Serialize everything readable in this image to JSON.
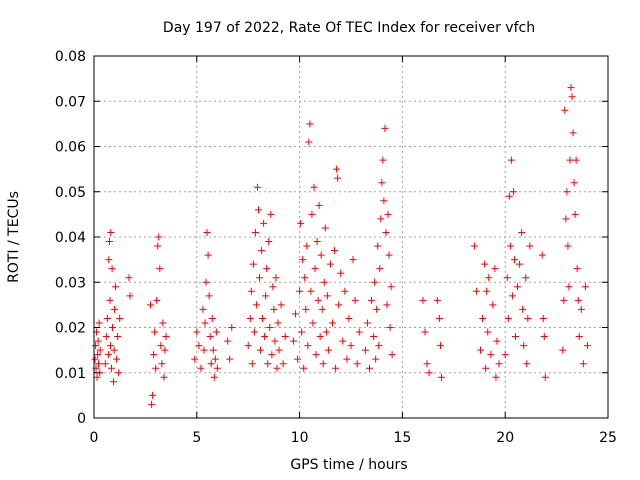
{
  "chart_data": {
    "type": "scatter",
    "title": "Day 197 of 2022, Rate Of TEC Index for receiver vfch",
    "xlabel": "GPS time / hours",
    "ylabel": "ROTI / TECUs",
    "xlim": [
      0,
      25
    ],
    "ylim": [
      0,
      0.08
    ],
    "x_ticks": [
      0,
      5,
      10,
      15,
      20,
      25
    ],
    "x_tick_labels": [
      "0",
      "5",
      "10",
      "15",
      "20",
      "25"
    ],
    "y_ticks": [
      0,
      0.01,
      0.02,
      0.03,
      0.04,
      0.05,
      0.06,
      0.07,
      0.08
    ],
    "y_tick_labels": [
      "0",
      "0.01",
      "0.02",
      "0.03",
      "0.04",
      "0.05",
      "0.06",
      "0.07",
      "0.08"
    ],
    "grid": true,
    "marker": "plus",
    "color": "#ff0000",
    "series": [
      {
        "name": "ROTI",
        "points": [
          [
            0.05,
            0.013
          ],
          [
            0.08,
            0.016
          ],
          [
            0.1,
            0.011
          ],
          [
            0.12,
            0.019
          ],
          [
            0.15,
            0.009
          ],
          [
            0.18,
            0.014
          ],
          [
            0.2,
            0.017
          ],
          [
            0.22,
            0.012
          ],
          [
            0.25,
            0.021
          ],
          [
            0.28,
            0.01
          ],
          [
            0.3,
            0.015
          ],
          [
            0.55,
            0.012
          ],
          [
            0.6,
            0.018
          ],
          [
            0.65,
            0.022
          ],
          [
            0.7,
            0.014
          ],
          [
            0.72,
            0.035
          ],
          [
            0.75,
            0.039
          ],
          [
            0.78,
            0.026
          ],
          [
            0.8,
            0.016
          ],
          [
            0.82,
            0.041
          ],
          [
            0.85,
            0.011
          ],
          [
            0.88,
            0.033
          ],
          [
            0.9,
            0.02
          ],
          [
            0.95,
            0.008
          ],
          [
            0.98,
            0.015
          ],
          [
            1.0,
            0.024
          ],
          [
            1.05,
            0.029
          ],
          [
            1.1,
            0.013
          ],
          [
            1.15,
            0.018
          ],
          [
            1.2,
            0.01
          ],
          [
            1.25,
            0.022
          ],
          [
            1.7,
            0.031
          ],
          [
            1.75,
            0.027
          ],
          [
            2.75,
            0.025
          ],
          [
            2.8,
            0.003
          ],
          [
            2.85,
            0.005
          ],
          [
            2.9,
            0.014
          ],
          [
            2.95,
            0.019
          ],
          [
            3.0,
            0.011
          ],
          [
            3.05,
            0.026
          ],
          [
            3.1,
            0.038
          ],
          [
            3.15,
            0.04
          ],
          [
            3.2,
            0.033
          ],
          [
            3.25,
            0.016
          ],
          [
            3.3,
            0.012
          ],
          [
            3.35,
            0.021
          ],
          [
            3.4,
            0.009
          ],
          [
            3.45,
            0.015
          ],
          [
            3.5,
            0.018
          ],
          [
            4.9,
            0.013
          ],
          [
            5.0,
            0.019
          ],
          [
            5.1,
            0.016
          ],
          [
            5.2,
            0.011
          ],
          [
            5.3,
            0.024
          ],
          [
            5.35,
            0.015
          ],
          [
            5.4,
            0.021
          ],
          [
            5.45,
            0.03
          ],
          [
            5.5,
            0.041
          ],
          [
            5.55,
            0.036
          ],
          [
            5.6,
            0.027
          ],
          [
            5.65,
            0.018
          ],
          [
            5.7,
            0.012
          ],
          [
            5.75,
            0.022
          ],
          [
            5.8,
            0.015
          ],
          [
            5.85,
            0.009
          ],
          [
            5.9,
            0.013
          ],
          [
            5.95,
            0.019
          ],
          [
            6.0,
            0.011
          ],
          [
            6.5,
            0.017
          ],
          [
            6.6,
            0.013
          ],
          [
            6.7,
            0.02
          ],
          [
            7.5,
            0.016
          ],
          [
            7.6,
            0.022
          ],
          [
            7.65,
            0.028
          ],
          [
            7.7,
            0.012
          ],
          [
            7.75,
            0.034
          ],
          [
            7.8,
            0.019
          ],
          [
            7.85,
            0.041
          ],
          [
            7.9,
            0.025
          ],
          [
            7.95,
            0.051
          ],
          [
            8.0,
            0.046
          ],
          [
            8.05,
            0.031
          ],
          [
            8.1,
            0.015
          ],
          [
            8.15,
            0.037
          ],
          [
            8.2,
            0.022
          ],
          [
            8.25,
            0.043
          ],
          [
            8.3,
            0.018
          ],
          [
            8.35,
            0.027
          ],
          [
            8.4,
            0.033
          ],
          [
            8.45,
            0.012
          ],
          [
            8.5,
            0.039
          ],
          [
            8.55,
            0.02
          ],
          [
            8.6,
            0.045
          ],
          [
            8.65,
            0.014
          ],
          [
            8.7,
            0.029
          ],
          [
            8.75,
            0.024
          ],
          [
            8.8,
            0.017
          ],
          [
            8.85,
            0.031
          ],
          [
            8.9,
            0.011
          ],
          [
            8.95,
            0.021
          ],
          [
            9.0,
            0.015
          ],
          [
            9.1,
            0.025
          ],
          [
            9.2,
            0.012
          ],
          [
            9.3,
            0.018
          ],
          [
            9.7,
            0.017
          ],
          [
            9.8,
            0.023
          ],
          [
            9.9,
            0.013
          ],
          [
            10.0,
            0.028
          ],
          [
            10.05,
            0.043
          ],
          [
            10.1,
            0.019
          ],
          [
            10.15,
            0.035
          ],
          [
            10.2,
            0.011
          ],
          [
            10.25,
            0.031
          ],
          [
            10.3,
            0.024
          ],
          [
            10.35,
            0.038
          ],
          [
            10.4,
            0.016
          ],
          [
            10.45,
            0.061
          ],
          [
            10.5,
            0.065
          ],
          [
            10.55,
            0.028
          ],
          [
            10.6,
            0.045
          ],
          [
            10.65,
            0.021
          ],
          [
            10.7,
            0.051
          ],
          [
            10.75,
            0.033
          ],
          [
            10.8,
            0.014
          ],
          [
            10.85,
            0.039
          ],
          [
            10.9,
            0.026
          ],
          [
            10.95,
            0.047
          ],
          [
            11.0,
            0.018
          ],
          [
            11.05,
            0.036
          ],
          [
            11.1,
            0.024
          ],
          [
            11.15,
            0.012
          ],
          [
            11.2,
            0.03
          ],
          [
            11.25,
            0.042
          ],
          [
            11.3,
            0.019
          ],
          [
            11.35,
            0.027
          ],
          [
            11.4,
            0.015
          ],
          [
            11.5,
            0.034
          ],
          [
            11.6,
            0.021
          ],
          [
            11.7,
            0.037
          ],
          [
            11.75,
            0.011
          ],
          [
            11.8,
            0.055
          ],
          [
            11.85,
            0.053
          ],
          [
            11.9,
            0.025
          ],
          [
            12.0,
            0.032
          ],
          [
            12.1,
            0.017
          ],
          [
            12.2,
            0.028
          ],
          [
            12.3,
            0.013
          ],
          [
            12.4,
            0.022
          ],
          [
            12.5,
            0.016
          ],
          [
            12.6,
            0.035
          ],
          [
            12.7,
            0.026
          ],
          [
            12.8,
            0.012
          ],
          [
            12.9,
            0.019
          ],
          [
            13.2,
            0.015
          ],
          [
            13.3,
            0.021
          ],
          [
            13.4,
            0.011
          ],
          [
            13.5,
            0.026
          ],
          [
            13.6,
            0.018
          ],
          [
            13.65,
            0.03
          ],
          [
            13.7,
            0.013
          ],
          [
            13.75,
            0.024
          ],
          [
            13.8,
            0.038
          ],
          [
            13.85,
            0.016
          ],
          [
            13.9,
            0.033
          ],
          [
            13.95,
            0.044
          ],
          [
            14.0,
            0.052
          ],
          [
            14.05,
            0.057
          ],
          [
            14.1,
            0.048
          ],
          [
            14.15,
            0.064
          ],
          [
            14.2,
            0.041
          ],
          [
            14.25,
            0.025
          ],
          [
            14.3,
            0.045
          ],
          [
            14.35,
            0.036
          ],
          [
            14.4,
            0.02
          ],
          [
            14.45,
            0.029
          ],
          [
            14.5,
            0.014
          ],
          [
            16.0,
            0.026
          ],
          [
            16.1,
            0.019
          ],
          [
            16.2,
            0.012
          ],
          [
            16.3,
            0.01
          ],
          [
            16.7,
            0.026
          ],
          [
            16.8,
            0.022
          ],
          [
            16.85,
            0.016
          ],
          [
            16.9,
            0.009
          ],
          [
            18.5,
            0.038
          ],
          [
            18.6,
            0.028
          ],
          [
            18.8,
            0.015
          ],
          [
            18.9,
            0.022
          ],
          [
            19.0,
            0.034
          ],
          [
            19.05,
            0.011
          ],
          [
            19.1,
            0.028
          ],
          [
            19.15,
            0.019
          ],
          [
            19.2,
            0.031
          ],
          [
            19.3,
            0.014
          ],
          [
            19.4,
            0.025
          ],
          [
            19.5,
            0.033
          ],
          [
            19.55,
            0.009
          ],
          [
            19.6,
            0.017
          ],
          [
            19.7,
            0.012
          ],
          [
            20.0,
            0.014
          ],
          [
            20.1,
            0.031
          ],
          [
            20.15,
            0.022
          ],
          [
            20.2,
            0.049
          ],
          [
            20.25,
            0.038
          ],
          [
            20.3,
            0.057
          ],
          [
            20.35,
            0.027
          ],
          [
            20.4,
            0.05
          ],
          [
            20.45,
            0.035
          ],
          [
            20.5,
            0.018
          ],
          [
            20.6,
            0.029
          ],
          [
            20.7,
            0.034
          ],
          [
            20.8,
            0.041
          ],
          [
            20.85,
            0.024
          ],
          [
            20.9,
            0.016
          ],
          [
            21.0,
            0.031
          ],
          [
            21.05,
            0.012
          ],
          [
            21.1,
            0.022
          ],
          [
            21.2,
            0.038
          ],
          [
            21.8,
            0.036
          ],
          [
            21.85,
            0.022
          ],
          [
            21.9,
            0.018
          ],
          [
            21.95,
            0.009
          ],
          [
            22.8,
            0.015
          ],
          [
            22.85,
            0.026
          ],
          [
            22.9,
            0.068
          ],
          [
            22.95,
            0.044
          ],
          [
            23.0,
            0.05
          ],
          [
            23.05,
            0.038
          ],
          [
            23.1,
            0.029
          ],
          [
            23.15,
            0.057
          ],
          [
            23.2,
            0.073
          ],
          [
            23.25,
            0.071
          ],
          [
            23.3,
            0.063
          ],
          [
            23.35,
            0.052
          ],
          [
            23.4,
            0.045
          ],
          [
            23.45,
            0.057
          ],
          [
            23.5,
            0.033
          ],
          [
            23.55,
            0.026
          ],
          [
            23.6,
            0.018
          ],
          [
            23.7,
            0.024
          ],
          [
            23.8,
            0.012
          ],
          [
            23.9,
            0.029
          ],
          [
            24.0,
            0.016
          ]
        ]
      }
    ]
  }
}
